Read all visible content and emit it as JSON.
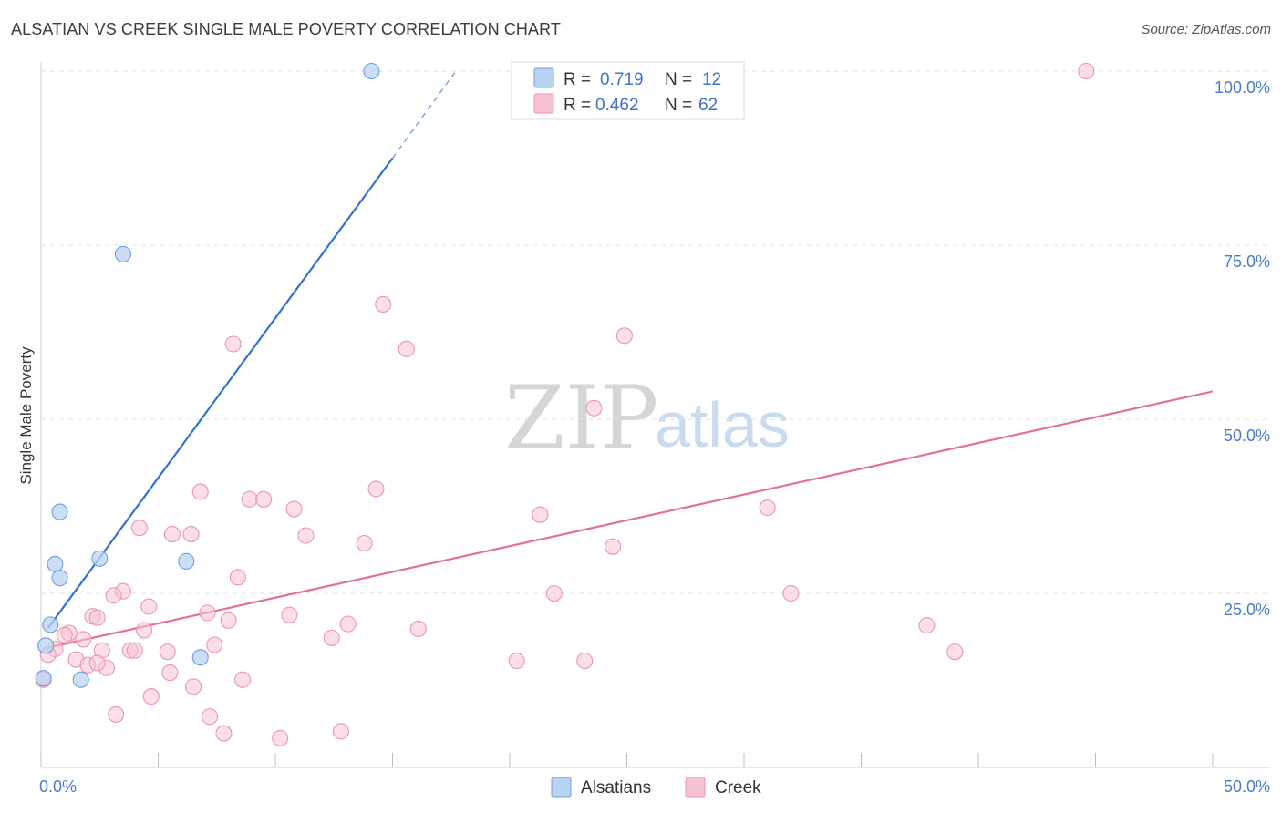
{
  "header": {
    "title": "ALSATIAN VS CREEK SINGLE MALE POVERTY CORRELATION CHART",
    "source": "Source: ZipAtlas.com"
  },
  "watermark": {
    "zip": "ZIP",
    "atlas": "atlas"
  },
  "colors": {
    "blue_fill": "#b9d3f2",
    "blue_stroke": "#6f9fde",
    "blue_line": "#2f72d0",
    "pink_fill": "#f7c3d3",
    "pink_stroke": "#ec96b2",
    "pink_line": "#e4709a",
    "grid": "#e2e2e2",
    "accent_text": "#4a7bc8"
  },
  "legend": {
    "rows": [
      {
        "r_label": "R =",
        "r_value": "0.719",
        "n_label": "N =",
        "n_value": "12"
      },
      {
        "r_label": "R =",
        "r_value": "0.462",
        "n_label": "N =",
        "n_value": "62"
      }
    ]
  },
  "bottom_legend": {
    "series_a": "Alsatians",
    "series_b": "Creek"
  },
  "chart_data": {
    "type": "scatter",
    "title": "ALSATIAN VS CREEK SINGLE MALE POVERTY CORRELATION CHART",
    "xlabel": "",
    "ylabel": "Single Male Poverty",
    "xlim": [
      0,
      50
    ],
    "ylim": [
      0,
      100
    ],
    "x_tick_labels": [
      "0.0%",
      "50.0%"
    ],
    "y_ticks": [
      25,
      50,
      75,
      100
    ],
    "y_tick_labels": [
      "25.0%",
      "50.0%",
      "75.0%",
      "100.0%"
    ],
    "grid": true,
    "legend_position": "top-center",
    "series": [
      {
        "name": "Alsatians",
        "r": 0.719,
        "n": 12,
        "trendline": {
          "x": [
            0.3,
            15
          ],
          "y": [
            20.0,
            87.5
          ],
          "dashed_to": {
            "x": 17.7,
            "y": 100
          }
        },
        "points": [
          {
            "x": 14.1,
            "y": 100.0
          },
          {
            "x": 3.5,
            "y": 73.7
          },
          {
            "x": 0.8,
            "y": 36.7
          },
          {
            "x": 2.5,
            "y": 30.0
          },
          {
            "x": 0.6,
            "y": 29.2
          },
          {
            "x": 6.2,
            "y": 29.6
          },
          {
            "x": 0.8,
            "y": 27.2
          },
          {
            "x": 0.4,
            "y": 20.5
          },
          {
            "x": 0.2,
            "y": 17.5
          },
          {
            "x": 6.8,
            "y": 15.8
          },
          {
            "x": 0.1,
            "y": 12.8
          },
          {
            "x": 1.7,
            "y": 12.6
          }
        ]
      },
      {
        "name": "Creek",
        "r": 0.462,
        "n": 62,
        "trendline": {
          "x": [
            0.3,
            50
          ],
          "y": [
            17.2,
            54.0
          ]
        },
        "points": [
          {
            "x": 44.6,
            "y": 100.0
          },
          {
            "x": 14.6,
            "y": 66.5
          },
          {
            "x": 24.9,
            "y": 62.0
          },
          {
            "x": 8.2,
            "y": 60.8
          },
          {
            "x": 15.6,
            "y": 60.1
          },
          {
            "x": 23.6,
            "y": 51.6
          },
          {
            "x": 14.3,
            "y": 40.0
          },
          {
            "x": 6.8,
            "y": 39.6
          },
          {
            "x": 8.9,
            "y": 38.5
          },
          {
            "x": 9.5,
            "y": 38.5
          },
          {
            "x": 10.8,
            "y": 37.1
          },
          {
            "x": 31.0,
            "y": 37.3
          },
          {
            "x": 21.3,
            "y": 36.3
          },
          {
            "x": 4.2,
            "y": 34.4
          },
          {
            "x": 5.6,
            "y": 33.5
          },
          {
            "x": 6.4,
            "y": 33.5
          },
          {
            "x": 11.3,
            "y": 33.3
          },
          {
            "x": 13.8,
            "y": 32.2
          },
          {
            "x": 24.4,
            "y": 31.7
          },
          {
            "x": 8.4,
            "y": 27.3
          },
          {
            "x": 3.5,
            "y": 25.3
          },
          {
            "x": 3.1,
            "y": 24.7
          },
          {
            "x": 21.9,
            "y": 25.0
          },
          {
            "x": 32.0,
            "y": 25.0
          },
          {
            "x": 4.6,
            "y": 23.1
          },
          {
            "x": 7.1,
            "y": 22.2
          },
          {
            "x": 10.6,
            "y": 21.9
          },
          {
            "x": 2.2,
            "y": 21.7
          },
          {
            "x": 2.4,
            "y": 21.5
          },
          {
            "x": 8.0,
            "y": 21.1
          },
          {
            "x": 13.1,
            "y": 20.6
          },
          {
            "x": 37.8,
            "y": 20.4
          },
          {
            "x": 4.4,
            "y": 19.7
          },
          {
            "x": 16.1,
            "y": 19.9
          },
          {
            "x": 1.2,
            "y": 19.3
          },
          {
            "x": 1.0,
            "y": 19.0
          },
          {
            "x": 12.4,
            "y": 18.6
          },
          {
            "x": 7.4,
            "y": 17.6
          },
          {
            "x": 0.6,
            "y": 17.0
          },
          {
            "x": 2.6,
            "y": 16.8
          },
          {
            "x": 3.8,
            "y": 16.8
          },
          {
            "x": 4.0,
            "y": 16.8
          },
          {
            "x": 5.4,
            "y": 16.6
          },
          {
            "x": 39.0,
            "y": 16.6
          },
          {
            "x": 0.3,
            "y": 16.2
          },
          {
            "x": 1.5,
            "y": 15.5
          },
          {
            "x": 20.3,
            "y": 15.3
          },
          {
            "x": 23.2,
            "y": 15.3
          },
          {
            "x": 2.0,
            "y": 14.7
          },
          {
            "x": 2.8,
            "y": 14.3
          },
          {
            "x": 5.5,
            "y": 13.6
          },
          {
            "x": 8.6,
            "y": 12.6
          },
          {
            "x": 0.1,
            "y": 12.6
          },
          {
            "x": 6.5,
            "y": 11.6
          },
          {
            "x": 4.7,
            "y": 10.2
          },
          {
            "x": 3.2,
            "y": 7.6
          },
          {
            "x": 7.2,
            "y": 7.3
          },
          {
            "x": 7.8,
            "y": 4.9
          },
          {
            "x": 12.8,
            "y": 5.2
          },
          {
            "x": 10.2,
            "y": 4.2
          },
          {
            "x": 2.4,
            "y": 15.0
          },
          {
            "x": 1.8,
            "y": 18.4
          }
        ]
      }
    ]
  }
}
